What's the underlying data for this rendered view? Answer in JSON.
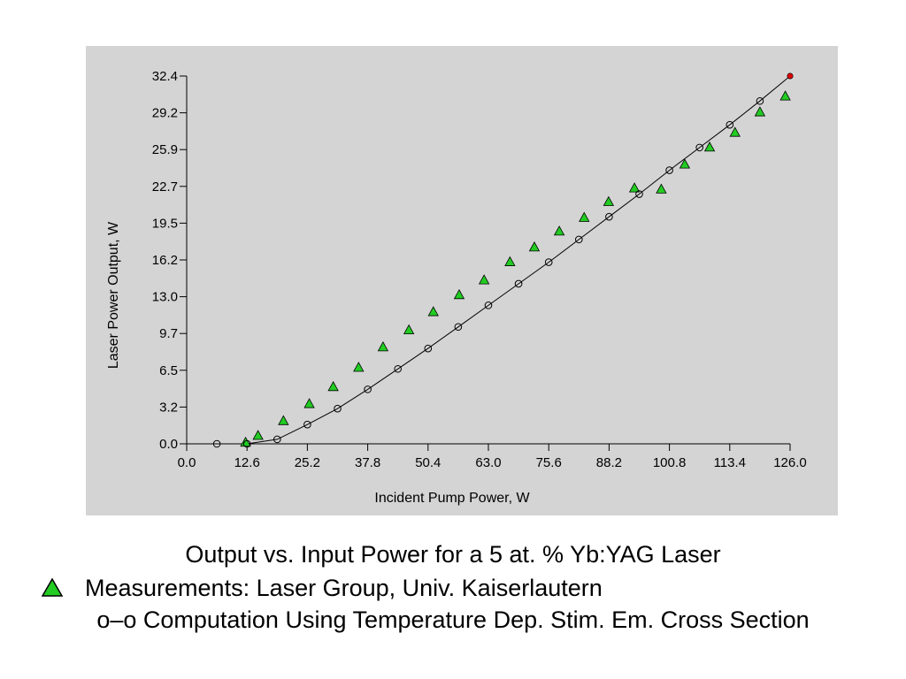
{
  "chart_data": {
    "type": "scatter",
    "xlabel": "Incident Pump Power, W",
    "ylabel": "Laser Power Output, W",
    "xlim": [
      0,
      126
    ],
    "ylim": [
      0,
      32.4
    ],
    "x_ticks": [
      "0.0",
      "12.6",
      "25.2",
      "37.8",
      "50.4",
      "63.0",
      "75.6",
      "88.2",
      "100.8",
      "113.4",
      "126.0"
    ],
    "y_ticks": [
      "0.0",
      "3.2",
      "6.5",
      "9.7",
      "13.0",
      "16.2",
      "19.5",
      "22.7",
      "25.9",
      "29.2",
      "32.4"
    ],
    "x_tick_values": [
      0,
      12.6,
      25.2,
      37.8,
      50.4,
      63.0,
      75.6,
      88.2,
      100.8,
      113.4,
      126.0
    ],
    "y_tick_values": [
      0,
      3.24,
      6.48,
      9.72,
      12.96,
      16.2,
      19.44,
      22.68,
      25.92,
      29.16,
      32.4
    ],
    "grid": false,
    "series": [
      {
        "style": "triangle",
        "color": "#22cc22",
        "points": [
          [
            12.3,
            0.1
          ],
          [
            14.9,
            0.7
          ],
          [
            20.2,
            2.0
          ],
          [
            25.6,
            3.5
          ],
          [
            30.6,
            5.0
          ],
          [
            35.9,
            6.7
          ],
          [
            41.0,
            8.5
          ],
          [
            46.4,
            10.0
          ],
          [
            51.5,
            11.6
          ],
          [
            56.9,
            13.1
          ],
          [
            62.1,
            14.4
          ],
          [
            67.5,
            16.0
          ],
          [
            72.6,
            17.3
          ],
          [
            77.8,
            18.7
          ],
          [
            83.0,
            19.9
          ],
          [
            88.1,
            21.3
          ],
          [
            93.5,
            22.5
          ],
          [
            99.1,
            22.4
          ],
          [
            104.0,
            24.6
          ],
          [
            109.2,
            26.1
          ],
          [
            114.5,
            27.4
          ],
          [
            119.7,
            29.2
          ],
          [
            125.0,
            30.6
          ]
        ]
      },
      {
        "style": "circle-line",
        "color": "#000000",
        "points": [
          [
            6.3,
            0.0
          ],
          [
            12.6,
            0.0
          ],
          [
            18.9,
            0.4
          ],
          [
            25.2,
            1.7
          ],
          [
            31.5,
            3.1
          ],
          [
            37.8,
            4.8
          ],
          [
            44.1,
            6.6
          ],
          [
            50.4,
            8.4
          ],
          [
            56.7,
            10.3
          ],
          [
            63.0,
            12.2
          ],
          [
            69.3,
            14.1
          ],
          [
            75.6,
            16.0
          ],
          [
            81.9,
            18.0
          ],
          [
            88.2,
            20.0
          ],
          [
            94.5,
            22.0
          ],
          [
            100.8,
            24.1
          ],
          [
            107.1,
            26.1
          ],
          [
            113.4,
            28.1
          ],
          [
            119.7,
            30.2
          ]
        ]
      },
      {
        "style": "dot",
        "color": "#dd0000",
        "points": [
          [
            126.0,
            32.4
          ]
        ]
      }
    ]
  },
  "caption": {
    "title": "Output vs. Input Power for a 5 at. % Yb:YAG Laser",
    "measurements": "Measurements: Laser Group, Univ. Kaiserlautern",
    "computation": "o–o Computation Using Temperature Dep. Stim. Em. Cross Section"
  }
}
